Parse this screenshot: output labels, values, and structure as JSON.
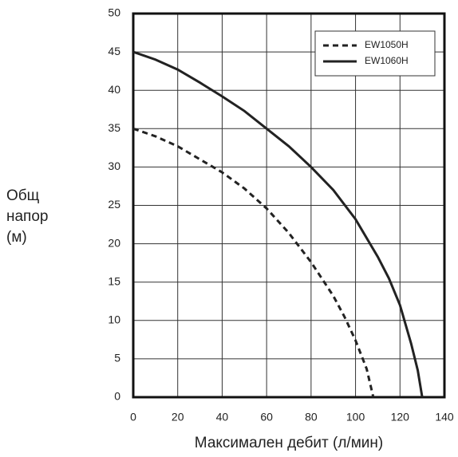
{
  "chart_data": {
    "type": "line",
    "xlabel": "Максимален дебит (л/мин)",
    "ylabel": [
      "Общ",
      "напор",
      "(м)"
    ],
    "xlim": [
      0,
      140
    ],
    "xticks": [
      0,
      20,
      40,
      60,
      80,
      100,
      120,
      140
    ],
    "ylim": [
      0,
      50
    ],
    "yticks": [
      0,
      5,
      10,
      15,
      20,
      25,
      30,
      35,
      40,
      45,
      50
    ],
    "grid": true,
    "legend": "upper right",
    "series": [
      {
        "name": "EW1050H",
        "color": "#222222",
        "dashed": true,
        "x": [
          0,
          10,
          20,
          30,
          40,
          50,
          60,
          70,
          80,
          90,
          95,
          100,
          105,
          108
        ],
        "values": [
          35,
          34,
          32.7,
          31,
          29.3,
          27.2,
          24.6,
          21.4,
          17.6,
          13.2,
          10.5,
          7.4,
          3.7,
          0
        ]
      },
      {
        "name": "EW1060H",
        "color": "#222222",
        "dashed": false,
        "x": [
          0,
          10,
          20,
          30,
          40,
          50,
          60,
          70,
          80,
          90,
          100,
          110,
          115,
          120,
          125,
          128,
          130
        ],
        "values": [
          45,
          44,
          42.7,
          41,
          39.2,
          37.3,
          35,
          32.7,
          30,
          27,
          23.2,
          18.3,
          15.5,
          12,
          7,
          3.5,
          0
        ]
      }
    ]
  }
}
